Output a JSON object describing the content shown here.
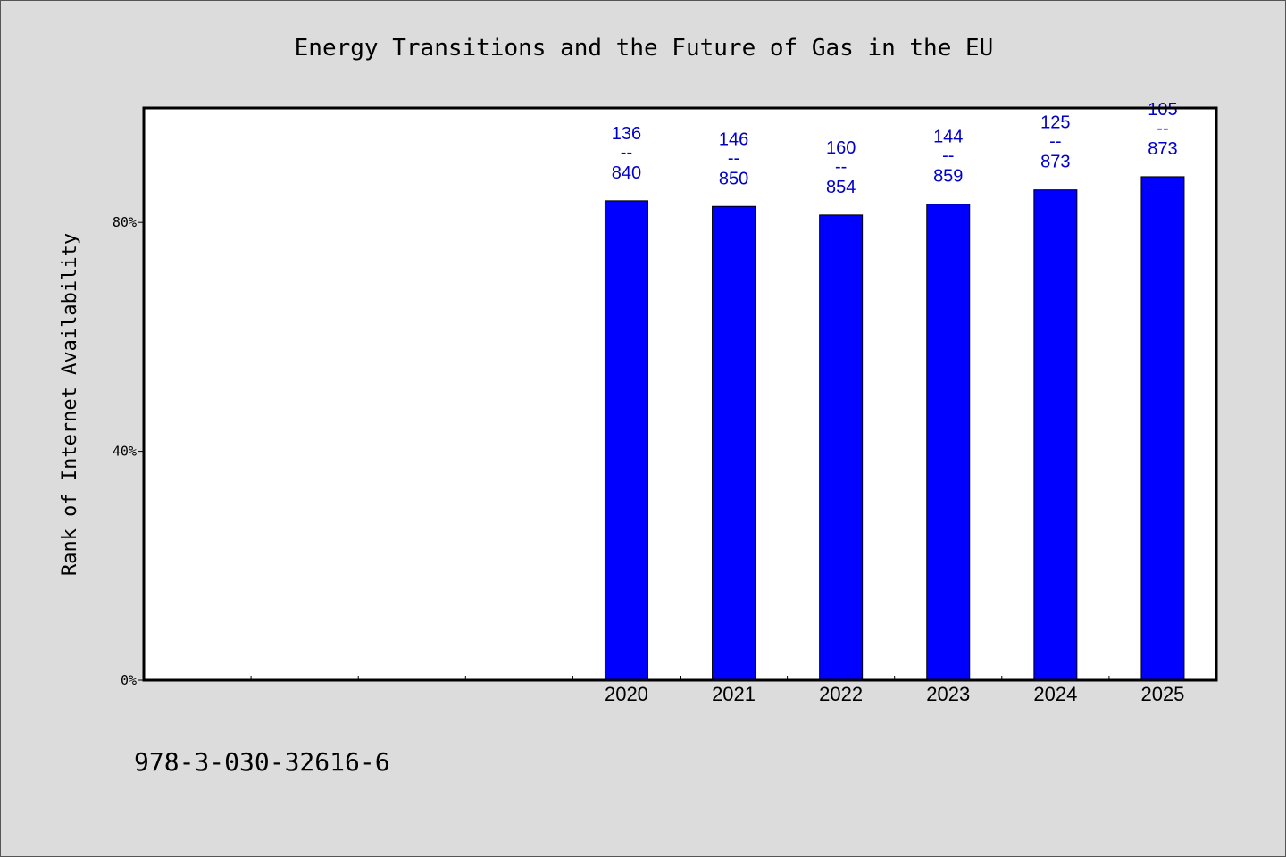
{
  "chart_data": {
    "type": "bar",
    "title": "Energy Transitions and the Future of Gas in the EU",
    "xlabel": "",
    "ylabel": "Rank of Internet Availability",
    "categories": [
      "",
      "",
      "",
      "",
      "2020",
      "2021",
      "2022",
      "2023",
      "2024",
      "2025"
    ],
    "values": [
      null,
      null,
      null,
      null,
      83.8,
      82.8,
      81.3,
      83.2,
      85.7,
      88.0
    ],
    "ylim": [
      0,
      100
    ],
    "yticks": [
      {
        "value": 0,
        "label": "0%"
      },
      {
        "value": 40,
        "label": "40%"
      },
      {
        "value": 80,
        "label": "80%"
      }
    ],
    "bar_labels": [
      null,
      null,
      null,
      null,
      {
        "top": "136",
        "mid": "--",
        "bottom": "840"
      },
      {
        "top": "146",
        "mid": "--",
        "bottom": "850"
      },
      {
        "top": "160",
        "mid": "--",
        "bottom": "854"
      },
      {
        "top": "144",
        "mid": "--",
        "bottom": "859"
      },
      {
        "top": "125",
        "mid": "--",
        "bottom": "873"
      },
      {
        "top": "105",
        "mid": "--",
        "bottom": "873"
      }
    ],
    "bar_color": "#0000ff",
    "label_color": "#0000cc",
    "grid": false,
    "legend": "none"
  },
  "footer": {
    "isbn": "978-3-030-32616-6"
  }
}
